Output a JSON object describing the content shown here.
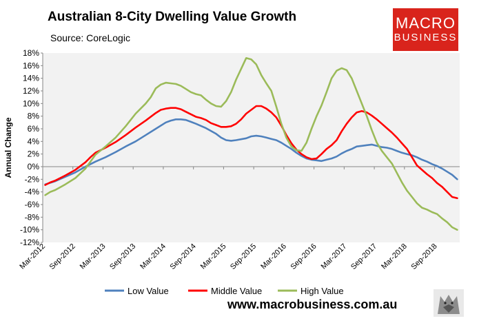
{
  "header": {
    "title": "Australian 8-City Dwelling Value Growth",
    "subtitle": "Source: CoreLogic"
  },
  "logo": {
    "line1": "MACRO",
    "line2": "BUSINESS"
  },
  "footer": {
    "website": "www.macrobusiness.com.au"
  },
  "colors": {
    "low": "#4f81bd",
    "middle": "#ff0000",
    "high": "#9bbb59",
    "logo_bg": "#d9241c",
    "plot_bg": "#f2f2f2"
  },
  "chart_data": {
    "type": "line",
    "title": "Australian 8-City Dwelling Value Growth",
    "xlabel": "",
    "ylabel": "Annual Change",
    "ylim": [
      -12,
      18
    ],
    "yticks": [
      -12,
      -10,
      -8,
      -6,
      -4,
      -2,
      0,
      2,
      4,
      6,
      8,
      10,
      12,
      14,
      16,
      18
    ],
    "ytick_labels": [
      "-12%",
      "-10%",
      "-8%",
      "-6%",
      "-4%",
      "-2%",
      "0%",
      "2%",
      "4%",
      "6%",
      "8%",
      "10%",
      "12%",
      "14%",
      "16%",
      "18%"
    ],
    "x_start": "Mar-2012",
    "x_count": 83,
    "xtick_labels": [
      {
        "index": 0,
        "label": "Mar-2012"
      },
      {
        "index": 6,
        "label": "Sep-2012"
      },
      {
        "index": 12,
        "label": "Mar-2013"
      },
      {
        "index": 18,
        "label": "Sep-2013"
      },
      {
        "index": 24,
        "label": "Mar-2014"
      },
      {
        "index": 30,
        "label": "Sep-2014"
      },
      {
        "index": 36,
        "label": "Mar-2015"
      },
      {
        "index": 42,
        "label": "Sep-2015"
      },
      {
        "index": 48,
        "label": "Mar-2016"
      },
      {
        "index": 54,
        "label": "Sep-2016"
      },
      {
        "index": 60,
        "label": "Mar-2017"
      },
      {
        "index": 66,
        "label": "Sep-2017"
      },
      {
        "index": 72,
        "label": "Mar-2018"
      },
      {
        "index": 78,
        "label": "Sep-2018"
      }
    ],
    "legend_position": "bottom",
    "series": [
      {
        "name": "Low Value",
        "color": "#4f81bd",
        "keypoints": [
          [
            0,
            -2.8
          ],
          [
            2,
            -2.3
          ],
          [
            4,
            -1.6
          ],
          [
            6,
            -0.9
          ],
          [
            8,
            0.0
          ],
          [
            10,
            0.8
          ],
          [
            12,
            1.5
          ],
          [
            14,
            2.3
          ],
          [
            16,
            3.2
          ],
          [
            18,
            4.0
          ],
          [
            20,
            5.0
          ],
          [
            22,
            6.0
          ],
          [
            24,
            7.0
          ],
          [
            25,
            7.3
          ],
          [
            26,
            7.5
          ],
          [
            27,
            7.5
          ],
          [
            28,
            7.4
          ],
          [
            29,
            7.1
          ],
          [
            30,
            6.8
          ],
          [
            32,
            6.1
          ],
          [
            34,
            5.2
          ],
          [
            35,
            4.6
          ],
          [
            36,
            4.2
          ],
          [
            37,
            4.1
          ],
          [
            38,
            4.2
          ],
          [
            40,
            4.5
          ],
          [
            41,
            4.8
          ],
          [
            42,
            4.9
          ],
          [
            43,
            4.8
          ],
          [
            44,
            4.6
          ],
          [
            45,
            4.4
          ],
          [
            46,
            4.2
          ],
          [
            47,
            3.8
          ],
          [
            48,
            3.3
          ],
          [
            49,
            2.8
          ],
          [
            50,
            2.2
          ],
          [
            51,
            1.7
          ],
          [
            52,
            1.3
          ],
          [
            53,
            1.1
          ],
          [
            54,
            1.0
          ],
          [
            55,
            0.9
          ],
          [
            56,
            1.1
          ],
          [
            57,
            1.3
          ],
          [
            58,
            1.6
          ],
          [
            59,
            2.1
          ],
          [
            60,
            2.5
          ],
          [
            61,
            2.8
          ],
          [
            62,
            3.2
          ],
          [
            63,
            3.3
          ],
          [
            64,
            3.4
          ],
          [
            65,
            3.5
          ],
          [
            66,
            3.3
          ],
          [
            67,
            3.1
          ],
          [
            68,
            3.0
          ],
          [
            69,
            2.8
          ],
          [
            70,
            2.5
          ],
          [
            71,
            2.2
          ],
          [
            72,
            2.0
          ],
          [
            73,
            1.8
          ],
          [
            74,
            1.5
          ],
          [
            75,
            1.1
          ],
          [
            76,
            0.8
          ],
          [
            77,
            0.4
          ],
          [
            78,
            0.1
          ],
          [
            79,
            -0.3
          ],
          [
            80,
            -0.8
          ],
          [
            81,
            -1.3
          ],
          [
            82,
            -2.0
          ]
        ]
      },
      {
        "name": "Middle Value",
        "color": "#ff0000",
        "keypoints": [
          [
            0,
            -2.9
          ],
          [
            1,
            -2.5
          ],
          [
            2,
            -2.2
          ],
          [
            4,
            -1.4
          ],
          [
            6,
            -0.5
          ],
          [
            8,
            0.7
          ],
          [
            9,
            1.5
          ],
          [
            10,
            2.2
          ],
          [
            12,
            3.0
          ],
          [
            14,
            3.9
          ],
          [
            16,
            5.0
          ],
          [
            18,
            6.2
          ],
          [
            20,
            7.3
          ],
          [
            22,
            8.5
          ],
          [
            23,
            9.0
          ],
          [
            24,
            9.2
          ],
          [
            25,
            9.3
          ],
          [
            26,
            9.3
          ],
          [
            27,
            9.1
          ],
          [
            28,
            8.7
          ],
          [
            30,
            7.9
          ],
          [
            31,
            7.7
          ],
          [
            32,
            7.4
          ],
          [
            33,
            6.9
          ],
          [
            34,
            6.6
          ],
          [
            35,
            6.3
          ],
          [
            36,
            6.3
          ],
          [
            37,
            6.4
          ],
          [
            38,
            6.8
          ],
          [
            39,
            7.5
          ],
          [
            40,
            8.4
          ],
          [
            41,
            9.0
          ],
          [
            42,
            9.6
          ],
          [
            43,
            9.6
          ],
          [
            44,
            9.2
          ],
          [
            45,
            8.6
          ],
          [
            46,
            7.8
          ],
          [
            47,
            6.5
          ],
          [
            48,
            5.0
          ],
          [
            49,
            3.7
          ],
          [
            50,
            2.7
          ],
          [
            51,
            2.0
          ],
          [
            52,
            1.5
          ],
          [
            53,
            1.2
          ],
          [
            54,
            1.3
          ],
          [
            55,
            2.0
          ],
          [
            56,
            2.8
          ],
          [
            57,
            3.4
          ],
          [
            58,
            4.2
          ],
          [
            59,
            5.6
          ],
          [
            60,
            6.8
          ],
          [
            61,
            7.8
          ],
          [
            62,
            8.6
          ],
          [
            63,
            8.8
          ],
          [
            64,
            8.6
          ],
          [
            65,
            8.1
          ],
          [
            66,
            7.5
          ],
          [
            67,
            6.8
          ],
          [
            68,
            6.1
          ],
          [
            69,
            5.4
          ],
          [
            70,
            4.6
          ],
          [
            71,
            3.7
          ],
          [
            72,
            2.8
          ],
          [
            73,
            1.5
          ],
          [
            74,
            0.2
          ],
          [
            75,
            -0.5
          ],
          [
            76,
            -1.2
          ],
          [
            77,
            -1.8
          ],
          [
            78,
            -2.6
          ],
          [
            79,
            -3.2
          ],
          [
            80,
            -4.0
          ],
          [
            81,
            -4.8
          ],
          [
            82,
            -5.0
          ]
        ]
      },
      {
        "name": "High Value",
        "color": "#9bbb59",
        "keypoints": [
          [
            0,
            -4.5
          ],
          [
            1,
            -4.0
          ],
          [
            2,
            -3.7
          ],
          [
            4,
            -2.8
          ],
          [
            6,
            -1.8
          ],
          [
            8,
            -0.3
          ],
          [
            9,
            0.8
          ],
          [
            10,
            1.9
          ],
          [
            12,
            3.2
          ],
          [
            14,
            4.6
          ],
          [
            16,
            6.4
          ],
          [
            18,
            8.4
          ],
          [
            20,
            10.0
          ],
          [
            21,
            11.0
          ],
          [
            22,
            12.4
          ],
          [
            23,
            13.0
          ],
          [
            24,
            13.3
          ],
          [
            25,
            13.2
          ],
          [
            26,
            13.1
          ],
          [
            27,
            12.8
          ],
          [
            28,
            12.3
          ],
          [
            29,
            11.8
          ],
          [
            30,
            11.5
          ],
          [
            31,
            11.3
          ],
          [
            32,
            10.6
          ],
          [
            33,
            10.0
          ],
          [
            34,
            9.6
          ],
          [
            35,
            9.5
          ],
          [
            36,
            10.4
          ],
          [
            37,
            11.8
          ],
          [
            38,
            13.8
          ],
          [
            39,
            15.5
          ],
          [
            40,
            17.2
          ],
          [
            41,
            17.0
          ],
          [
            42,
            16.2
          ],
          [
            43,
            14.5
          ],
          [
            44,
            13.2
          ],
          [
            45,
            12.0
          ],
          [
            46,
            9.5
          ],
          [
            47,
            6.8
          ],
          [
            48,
            4.6
          ],
          [
            49,
            3.2
          ],
          [
            50,
            2.6
          ],
          [
            51,
            2.5
          ],
          [
            52,
            3.8
          ],
          [
            53,
            6.0
          ],
          [
            54,
            8.0
          ],
          [
            55,
            9.7
          ],
          [
            56,
            11.8
          ],
          [
            57,
            14.0
          ],
          [
            58,
            15.2
          ],
          [
            59,
            15.6
          ],
          [
            60,
            15.3
          ],
          [
            61,
            14.0
          ],
          [
            62,
            12.0
          ],
          [
            63,
            10.0
          ],
          [
            64,
            8.0
          ],
          [
            65,
            5.8
          ],
          [
            66,
            3.8
          ],
          [
            67,
            2.5
          ],
          [
            68,
            1.5
          ],
          [
            69,
            0.5
          ],
          [
            70,
            -1.0
          ],
          [
            71,
            -2.5
          ],
          [
            72,
            -3.8
          ],
          [
            73,
            -4.8
          ],
          [
            74,
            -5.8
          ],
          [
            75,
            -6.5
          ],
          [
            76,
            -6.8
          ],
          [
            77,
            -7.2
          ],
          [
            78,
            -7.5
          ],
          [
            79,
            -8.2
          ],
          [
            80,
            -8.8
          ],
          [
            81,
            -9.6
          ],
          [
            82,
            -10.0
          ]
        ]
      }
    ]
  }
}
